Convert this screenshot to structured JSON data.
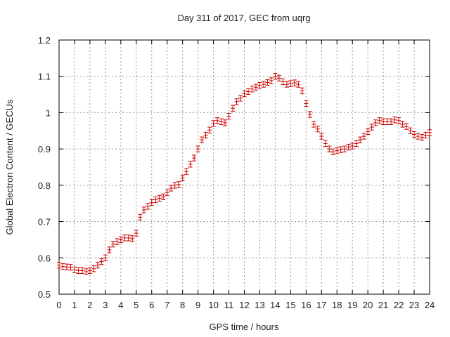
{
  "chart_data": {
    "type": "scatter",
    "title": "Day 311 of 2017, GEC from uqrg",
    "xlabel": "GPS time / hours",
    "ylabel": "Global Electron Content / GECUs",
    "xlim": [
      0,
      24
    ],
    "ylim": [
      0.5,
      1.2
    ],
    "x_ticks": [
      "0",
      "1",
      "2",
      "3",
      "4",
      "5",
      "6",
      "7",
      "8",
      "9",
      "10",
      "11",
      "12",
      "13",
      "14",
      "15",
      "16",
      "17",
      "18",
      "19",
      "20",
      "21",
      "22",
      "23",
      "24"
    ],
    "y_ticks": [
      "0.5",
      "0.6",
      "0.7",
      "0.8",
      "0.9",
      "1",
      "1.1",
      "1.2"
    ],
    "grid": true,
    "series_color": "#cc0000",
    "error_bar": 0.008,
    "x": [
      0,
      0.25,
      0.5,
      0.75,
      1,
      1.25,
      1.5,
      1.75,
      2,
      2.25,
      2.5,
      2.75,
      3,
      3.25,
      3.5,
      3.75,
      4,
      4.25,
      4.5,
      4.75,
      5,
      5.25,
      5.5,
      5.75,
      6,
      6.25,
      6.5,
      6.75,
      7,
      7.25,
      7.5,
      7.75,
      8,
      8.25,
      8.5,
      8.75,
      9,
      9.25,
      9.5,
      9.75,
      10,
      10.25,
      10.5,
      10.75,
      11,
      11.25,
      11.5,
      11.75,
      12,
      12.25,
      12.5,
      12.75,
      13,
      13.25,
      13.5,
      13.75,
      14,
      14.25,
      14.5,
      14.75,
      15,
      15.25,
      15.5,
      15.75,
      16,
      16.25,
      16.5,
      16.75,
      17,
      17.25,
      17.5,
      17.75,
      18,
      18.25,
      18.5,
      18.75,
      19,
      19.25,
      19.5,
      19.75,
      20,
      20.25,
      20.5,
      20.75,
      21,
      21.25,
      21.5,
      21.75,
      22,
      22.25,
      22.5,
      22.75,
      23,
      23.25,
      23.5,
      23.75,
      24
    ],
    "y": [
      0.58,
      0.576,
      0.575,
      0.574,
      0.567,
      0.565,
      0.565,
      0.562,
      0.565,
      0.57,
      0.58,
      0.59,
      0.6,
      0.622,
      0.638,
      0.645,
      0.65,
      0.655,
      0.655,
      0.653,
      0.668,
      0.712,
      0.732,
      0.742,
      0.752,
      0.76,
      0.764,
      0.768,
      0.78,
      0.792,
      0.8,
      0.802,
      0.82,
      0.838,
      0.858,
      0.875,
      0.9,
      0.925,
      0.938,
      0.952,
      0.97,
      0.978,
      0.975,
      0.972,
      0.99,
      1.012,
      1.03,
      1.04,
      1.052,
      1.058,
      1.065,
      1.07,
      1.075,
      1.078,
      1.083,
      1.088,
      1.1,
      1.095,
      1.085,
      1.078,
      1.08,
      1.082,
      1.078,
      1.06,
      1.025,
      0.995,
      0.968,
      0.955,
      0.935,
      0.915,
      0.9,
      0.892,
      0.895,
      0.898,
      0.9,
      0.905,
      0.908,
      0.915,
      0.925,
      0.935,
      0.948,
      0.96,
      0.972,
      0.978,
      0.975,
      0.975,
      0.975,
      0.98,
      0.978,
      0.968,
      0.962,
      0.95,
      0.94,
      0.935,
      0.932,
      0.938,
      0.945
    ]
  }
}
